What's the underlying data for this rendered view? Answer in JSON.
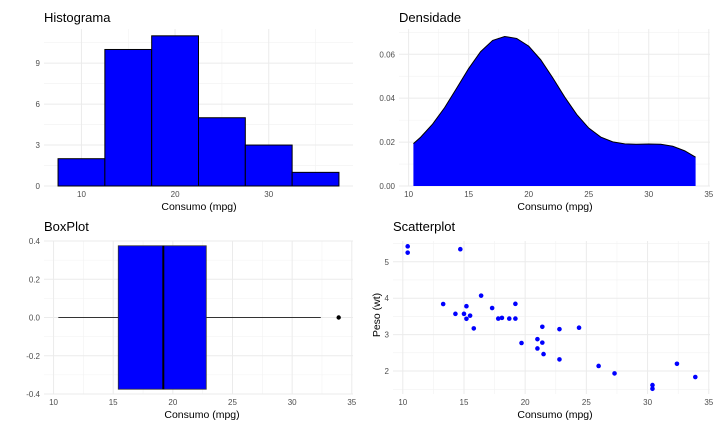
{
  "chart_data": [
    {
      "type": "bar",
      "subtype": "histogram",
      "title": "Histograma",
      "xlabel": "Consumo (mpg)",
      "ylabel": "",
      "bins": [
        {
          "from": 7.5,
          "to": 12.5,
          "count": 2
        },
        {
          "from": 12.5,
          "to": 17.5,
          "count": 10
        },
        {
          "from": 17.5,
          "to": 22.5,
          "count": 11
        },
        {
          "from": 22.5,
          "to": 27.5,
          "count": 5
        },
        {
          "from": 27.5,
          "to": 32.5,
          "count": 3
        },
        {
          "from": 32.5,
          "to": 37.5,
          "count": 1
        }
      ],
      "xticks": [
        "10",
        "20",
        "30"
      ],
      "xtick_values": [
        10,
        20,
        30
      ],
      "yticks": [
        "0",
        "3",
        "6",
        "9"
      ],
      "ytick_values": [
        0,
        3,
        6,
        9
      ],
      "xlim": [
        6.0,
        39.0
      ],
      "ylim": [
        0,
        11.5
      ],
      "fill": "#0000ff",
      "grid": true
    },
    {
      "type": "area",
      "subtype": "density",
      "title": "Densidade",
      "xlabel": "Consumo (mpg)",
      "ylabel": "",
      "x": [
        10.4,
        11,
        12,
        13,
        14,
        15,
        16,
        17,
        18,
        19,
        20,
        21,
        22,
        23,
        24,
        25,
        26,
        27,
        28,
        29,
        30,
        31,
        32,
        33,
        33.9
      ],
      "y": [
        0.0193,
        0.0222,
        0.0282,
        0.0357,
        0.0445,
        0.0535,
        0.0612,
        0.0663,
        0.0681,
        0.0672,
        0.0637,
        0.0575,
        0.0493,
        0.0405,
        0.0326,
        0.0264,
        0.0223,
        0.0201,
        0.0192,
        0.019,
        0.0191,
        0.019,
        0.0181,
        0.016,
        0.0131
      ],
      "xticks": [
        "10",
        "15",
        "20",
        "25",
        "30",
        "35"
      ],
      "xtick_values": [
        10,
        15,
        20,
        25,
        30,
        35
      ],
      "yticks": [
        "0.00",
        "0.02",
        "0.04",
        "0.06"
      ],
      "ytick_values": [
        0,
        0.02,
        0.04,
        0.06
      ],
      "xlim": [
        9.2,
        35.1
      ],
      "ylim": [
        0,
        0.0715
      ],
      "fill": "#0000ff",
      "grid": true
    },
    {
      "type": "boxplot",
      "title": "BoxPlot",
      "xlabel": "Consumo (mpg)",
      "ylabel": "",
      "stats": {
        "min": 10.4,
        "q1": 15.425,
        "median": 19.2,
        "q3": 22.8,
        "max": 32.4
      },
      "outliers": [
        33.9
      ],
      "box_halfwidth": 0.375,
      "xticks": [
        "10",
        "15",
        "20",
        "25",
        "30",
        "35"
      ],
      "xtick_values": [
        10,
        15,
        20,
        25,
        30,
        35
      ],
      "yticks": [
        "0.4",
        "0.2",
        "0.0",
        "-0.2",
        "-0.4"
      ],
      "ytick_values": [
        0.4,
        0.2,
        0.0,
        -0.2,
        -0.4
      ],
      "xlim": [
        9.2,
        35.1
      ],
      "ylim": [
        -0.4,
        0.4
      ],
      "fill": "#0000ff",
      "grid": true
    },
    {
      "type": "scatter",
      "title": "Scatterplot",
      "xlabel": "Consumo (mpg)",
      "ylabel": "Peso (wt)",
      "points": [
        [
          21.0,
          2.62
        ],
        [
          21.0,
          2.875
        ],
        [
          22.8,
          2.32
        ],
        [
          21.4,
          3.215
        ],
        [
          18.7,
          3.44
        ],
        [
          18.1,
          3.46
        ],
        [
          14.3,
          3.57
        ],
        [
          24.4,
          3.19
        ],
        [
          22.8,
          3.15
        ],
        [
          19.2,
          3.44
        ],
        [
          17.8,
          3.44
        ],
        [
          16.4,
          4.07
        ],
        [
          17.3,
          3.73
        ],
        [
          15.2,
          3.78
        ],
        [
          10.4,
          5.25
        ],
        [
          10.4,
          5.424
        ],
        [
          14.7,
          5.345
        ],
        [
          32.4,
          2.2
        ],
        [
          30.4,
          1.615
        ],
        [
          33.9,
          1.835
        ],
        [
          21.5,
          2.465
        ],
        [
          15.5,
          3.52
        ],
        [
          15.2,
          3.435
        ],
        [
          13.3,
          3.84
        ],
        [
          19.2,
          3.845
        ],
        [
          27.3,
          1.935
        ],
        [
          26.0,
          2.14
        ],
        [
          30.4,
          1.513
        ],
        [
          15.8,
          3.17
        ],
        [
          19.7,
          2.77
        ],
        [
          15.0,
          3.57
        ],
        [
          21.4,
          2.78
        ]
      ],
      "xticks": [
        "10",
        "15",
        "20",
        "25",
        "30",
        "35"
      ],
      "xtick_values": [
        10,
        15,
        20,
        25,
        30,
        35
      ],
      "yticks": [
        "2",
        "3",
        "4",
        "5"
      ],
      "ytick_values": [
        2,
        3,
        4,
        5
      ],
      "xlim": [
        9.2,
        35.1
      ],
      "ylim": [
        1.37,
        5.57
      ],
      "color": "#0000ff",
      "grid": true
    }
  ]
}
